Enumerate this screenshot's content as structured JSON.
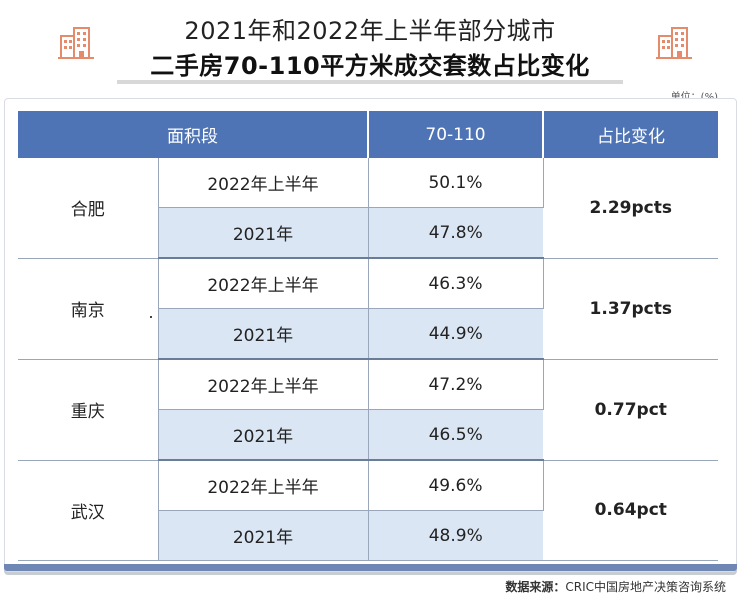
{
  "title": {
    "line1": "2021年和2022年上半年部分城市",
    "line2": "二手房70-110平方米成交套数占比变化"
  },
  "unit": "单位：(%)",
  "table": {
    "headers": [
      "面积段",
      "70-110",
      "占比变化"
    ],
    "groups": [
      {
        "city": "合肥",
        "change": "2.29pcts",
        "rows": [
          {
            "period": "2022年上半年",
            "value": "50.1%"
          },
          {
            "period": "2021年",
            "value": "47.8%"
          }
        ]
      },
      {
        "city": "南京",
        "change": "1.37pcts",
        "rows": [
          {
            "period": "2022年上半年",
            "value": "46.3%"
          },
          {
            "period": "2021年",
            "value": "44.9%"
          }
        ]
      },
      {
        "city": "重庆",
        "change": "0.77pct",
        "rows": [
          {
            "period": "2022年上半年",
            "value": "47.2%"
          },
          {
            "period": "2021年",
            "value": "46.5%"
          }
        ]
      },
      {
        "city": "武汉",
        "change": "0.64pct",
        "rows": [
          {
            "period": "2022年上半年",
            "value": "49.6%"
          },
          {
            "period": "2021年",
            "value": "48.9%"
          }
        ]
      }
    ]
  },
  "source": {
    "label": "数据来源：",
    "text": "CRIC中国房地产决策咨询系统"
  },
  "colors": {
    "header_bg": "#4f74b5",
    "alt_row": "#dbe6f4",
    "icon": "#e58a6a"
  },
  "icons": [
    "building-icon-left",
    "building-icon-right"
  ]
}
